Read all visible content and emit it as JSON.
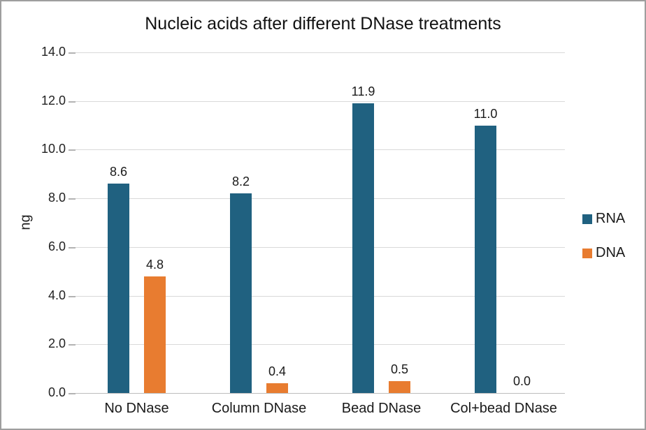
{
  "chart": {
    "title": "Nucleic acids after different DNase treatments",
    "y_axis_title": "ng"
  },
  "legend": {
    "entries": [
      {
        "label": "RNA",
        "color": "#206180"
      },
      {
        "label": "DNA",
        "color": "#e87c30"
      }
    ]
  },
  "chart_data": {
    "type": "bar",
    "title": "Nucleic acids after different DNase treatments",
    "categories": [
      "No DNase",
      "Column DNase",
      "Bead DNase",
      "Col+bead DNase"
    ],
    "series": [
      {
        "name": "RNA",
        "color": "#206180",
        "values": [
          8.6,
          8.2,
          11.9,
          11.0
        ]
      },
      {
        "name": "DNA",
        "color": "#e87c30",
        "values": [
          4.8,
          0.4,
          0.5,
          0.0
        ]
      }
    ],
    "xlabel": "",
    "ylabel": "ng",
    "ylim": [
      0,
      14
    ],
    "yticks": [
      "0.0",
      "2.0",
      "4.0",
      "6.0",
      "8.0",
      "10.0",
      "12.0",
      "14.0"
    ],
    "grid": true,
    "legend_position": "right",
    "value_label_decimals": 1
  }
}
